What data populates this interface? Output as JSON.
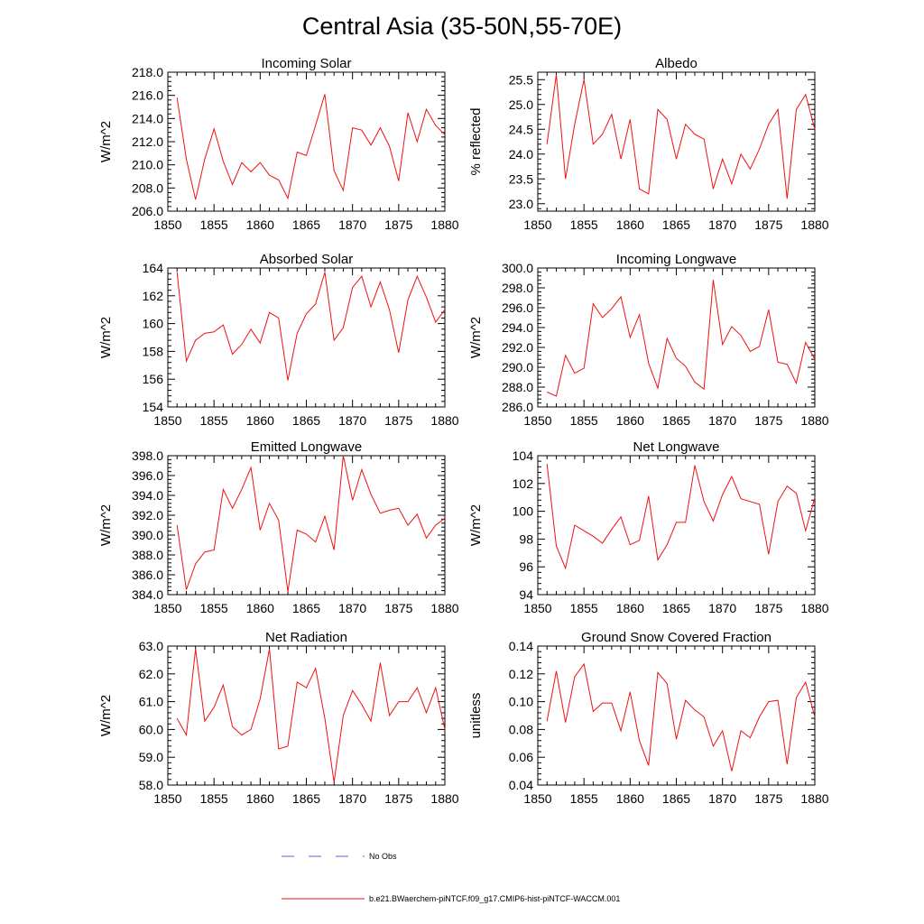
{
  "title": "Central Asia (35-50N,55-70E)",
  "legend": {
    "obs_label": "No Obs",
    "model_label": "b.e21.BWaerchem-piNTCF.f09_g17.CMIP6-hist-piNTCF-WACCM.001",
    "obs_color": "#5566cc",
    "model_color": "#ee1111"
  },
  "chart_data": [
    {
      "type": "line",
      "title": "Incoming Solar",
      "ylabel": "W/m^2",
      "xlim": [
        1850,
        1880
      ],
      "ylim": [
        206,
        218
      ],
      "yticks": [
        "206.0",
        "208.0",
        "210.0",
        "212.0",
        "214.0",
        "216.0",
        "218.0"
      ],
      "xticks": [
        "1850",
        "1855",
        "1860",
        "1865",
        "1870",
        "1875",
        "1880"
      ],
      "x": [
        1851,
        1852,
        1853,
        1854,
        1855,
        1856,
        1857,
        1858,
        1859,
        1860,
        1861,
        1862,
        1863,
        1864,
        1865,
        1866,
        1867,
        1868,
        1869,
        1870,
        1871,
        1872,
        1873,
        1874,
        1875,
        1876,
        1877,
        1878,
        1879,
        1880
      ],
      "series": [
        {
          "values": [
            215.8,
            210.5,
            207.0,
            210.5,
            213.1,
            210.3,
            208.3,
            210.2,
            209.4,
            210.2,
            209.1,
            208.7,
            207.1,
            211.1,
            210.8,
            213.4,
            216.1,
            209.5,
            207.8,
            213.2,
            213.0,
            211.7,
            213.2,
            211.6,
            208.6,
            214.5,
            212.0,
            214.8,
            213.4,
            212.6
          ]
        }
      ]
    },
    {
      "type": "line",
      "title": "Albedo",
      "ylabel": "% reflected",
      "xlim": [
        1850,
        1880
      ],
      "ylim": [
        22.85,
        25.65
      ],
      "yticks": [
        "23.0",
        "23.5",
        "24.0",
        "24.5",
        "25.0",
        "25.5"
      ],
      "xticks": [
        "1850",
        "1855",
        "1860",
        "1865",
        "1870",
        "1875",
        "1880"
      ],
      "x": [
        1851,
        1852,
        1853,
        1854,
        1855,
        1856,
        1857,
        1858,
        1859,
        1860,
        1861,
        1862,
        1863,
        1864,
        1865,
        1866,
        1867,
        1868,
        1869,
        1870,
        1871,
        1872,
        1873,
        1874,
        1875,
        1876,
        1877,
        1878,
        1879,
        1880
      ],
      "series": [
        {
          "values": [
            24.2,
            25.6,
            23.5,
            24.6,
            25.5,
            24.2,
            24.4,
            24.8,
            23.9,
            24.7,
            23.3,
            23.2,
            24.9,
            24.7,
            23.9,
            24.6,
            24.4,
            24.3,
            23.3,
            23.9,
            23.4,
            24.0,
            23.7,
            24.1,
            24.6,
            24.9,
            23.1,
            24.9,
            25.2,
            24.5
          ]
        }
      ]
    },
    {
      "type": "line",
      "title": "Absorbed Solar",
      "ylabel": "W/m^2",
      "xlim": [
        1850,
        1880
      ],
      "ylim": [
        154,
        164
      ],
      "yticks": [
        "154",
        "156",
        "158",
        "160",
        "162",
        "164"
      ],
      "xticks": [
        "1850",
        "1855",
        "1860",
        "1865",
        "1870",
        "1875",
        "1880"
      ],
      "x": [
        1851,
        1852,
        1853,
        1854,
        1855,
        1856,
        1857,
        1858,
        1859,
        1860,
        1861,
        1862,
        1863,
        1864,
        1865,
        1866,
        1867,
        1868,
        1869,
        1870,
        1871,
        1872,
        1873,
        1874,
        1875,
        1876,
        1877,
        1878,
        1879,
        1880
      ],
      "series": [
        {
          "values": [
            163.7,
            157.3,
            158.8,
            159.3,
            159.4,
            159.9,
            157.8,
            158.5,
            159.6,
            158.6,
            160.8,
            160.4,
            155.9,
            159.3,
            160.7,
            161.4,
            163.7,
            158.8,
            159.7,
            162.6,
            163.4,
            161.2,
            163.0,
            161.0,
            157.9,
            161.7,
            163.4,
            161.9,
            160.1,
            161.0
          ]
        }
      ]
    },
    {
      "type": "line",
      "title": "Incoming Longwave",
      "ylabel": "W/m^2",
      "xlim": [
        1850,
        1880
      ],
      "ylim": [
        286,
        300
      ],
      "yticks": [
        "286.0",
        "288.0",
        "290.0",
        "292.0",
        "294.0",
        "296.0",
        "298.0",
        "300.0"
      ],
      "xticks": [
        "1850",
        "1855",
        "1860",
        "1865",
        "1870",
        "1875",
        "1880"
      ],
      "x": [
        1851,
        1852,
        1853,
        1854,
        1855,
        1856,
        1857,
        1858,
        1859,
        1860,
        1861,
        1862,
        1863,
        1864,
        1865,
        1866,
        1867,
        1868,
        1869,
        1870,
        1871,
        1872,
        1873,
        1874,
        1875,
        1876,
        1877,
        1878,
        1879,
        1880
      ],
      "series": [
        {
          "values": [
            287.5,
            287.1,
            291.2,
            289.4,
            289.9,
            296.4,
            295.0,
            295.9,
            297.1,
            293.0,
            295.3,
            290.4,
            287.9,
            292.9,
            290.9,
            290.1,
            288.5,
            287.8,
            298.8,
            292.3,
            294.1,
            293.2,
            291.6,
            292.1,
            295.8,
            290.5,
            290.3,
            288.4,
            292.5,
            290.8
          ]
        }
      ]
    },
    {
      "type": "line",
      "title": "Emitted Longwave",
      "ylabel": "W/m^2",
      "xlim": [
        1850,
        1880
      ],
      "ylim": [
        384,
        398
      ],
      "yticks": [
        "384.0",
        "386.0",
        "388.0",
        "390.0",
        "392.0",
        "394.0",
        "396.0",
        "398.0"
      ],
      "xticks": [
        "1850",
        "1855",
        "1860",
        "1865",
        "1870",
        "1875",
        "1880"
      ],
      "x": [
        1851,
        1852,
        1853,
        1854,
        1855,
        1856,
        1857,
        1858,
        1859,
        1860,
        1861,
        1862,
        1863,
        1864,
        1865,
        1866,
        1867,
        1868,
        1869,
        1870,
        1871,
        1872,
        1873,
        1874,
        1875,
        1876,
        1877,
        1878,
        1879,
        1880
      ],
      "series": [
        {
          "values": [
            391.0,
            384.5,
            387.1,
            388.3,
            388.5,
            394.6,
            392.7,
            394.6,
            396.8,
            390.5,
            393.2,
            391.5,
            384.3,
            390.5,
            390.1,
            389.3,
            391.9,
            388.5,
            398.0,
            393.5,
            396.6,
            394.1,
            392.2,
            392.5,
            392.7,
            391.0,
            392.1,
            389.7,
            391.0,
            391.7
          ]
        }
      ]
    },
    {
      "type": "line",
      "title": "Net Longwave",
      "ylabel": "W/m^2",
      "xlim": [
        1850,
        1880
      ],
      "ylim": [
        94,
        104
      ],
      "yticks": [
        "94",
        "96",
        "98",
        "100",
        "102",
        "104"
      ],
      "xticks": [
        "1850",
        "1855",
        "1860",
        "1865",
        "1870",
        "1875",
        "1880"
      ],
      "x": [
        1851,
        1852,
        1853,
        1854,
        1855,
        1856,
        1857,
        1858,
        1859,
        1860,
        1861,
        1862,
        1863,
        1864,
        1865,
        1866,
        1867,
        1868,
        1869,
        1870,
        1871,
        1872,
        1873,
        1874,
        1875,
        1876,
        1877,
        1878,
        1879,
        1880
      ],
      "series": [
        {
          "values": [
            103.4,
            97.5,
            95.9,
            99.0,
            98.6,
            98.2,
            97.7,
            98.7,
            99.6,
            97.6,
            97.9,
            101.1,
            96.5,
            97.6,
            99.2,
            99.2,
            103.3,
            100.7,
            99.3,
            101.2,
            102.5,
            100.9,
            100.7,
            100.5,
            96.9,
            100.7,
            101.8,
            101.3,
            98.6,
            101.0
          ]
        }
      ]
    },
    {
      "type": "line",
      "title": "Net Radiation",
      "ylabel": "W/m^2",
      "xlim": [
        1850,
        1880
      ],
      "ylim": [
        58,
        63
      ],
      "yticks": [
        "58.0",
        "59.0",
        "60.0",
        "61.0",
        "62.0",
        "63.0"
      ],
      "xticks": [
        "1850",
        "1855",
        "1860",
        "1865",
        "1870",
        "1875",
        "1880"
      ],
      "x": [
        1851,
        1852,
        1853,
        1854,
        1855,
        1856,
        1857,
        1858,
        1859,
        1860,
        1861,
        1862,
        1863,
        1864,
        1865,
        1866,
        1867,
        1868,
        1869,
        1870,
        1871,
        1872,
        1873,
        1874,
        1875,
        1876,
        1877,
        1878,
        1879,
        1880
      ],
      "series": [
        {
          "values": [
            60.4,
            59.8,
            62.9,
            60.3,
            60.8,
            61.6,
            60.1,
            59.8,
            60.0,
            61.1,
            62.9,
            59.3,
            59.4,
            61.7,
            61.5,
            62.2,
            60.4,
            58.1,
            60.5,
            61.4,
            60.9,
            60.3,
            62.4,
            60.5,
            61.0,
            61.0,
            61.5,
            60.6,
            61.5,
            60.0
          ]
        }
      ]
    },
    {
      "type": "line",
      "title": "Ground Snow Covered Fraction",
      "ylabel": "unitless",
      "xlim": [
        1850,
        1880
      ],
      "ylim": [
        0.04,
        0.14
      ],
      "yticks": [
        "0.04",
        "0.06",
        "0.08",
        "0.10",
        "0.12",
        "0.14"
      ],
      "xticks": [
        "1850",
        "1855",
        "1860",
        "1865",
        "1870",
        "1875",
        "1880"
      ],
      "x": [
        1851,
        1852,
        1853,
        1854,
        1855,
        1856,
        1857,
        1858,
        1859,
        1860,
        1861,
        1862,
        1863,
        1864,
        1865,
        1866,
        1867,
        1868,
        1869,
        1870,
        1871,
        1872,
        1873,
        1874,
        1875,
        1876,
        1877,
        1878,
        1879,
        1880
      ],
      "series": [
        {
          "values": [
            0.086,
            0.122,
            0.085,
            0.118,
            0.127,
            0.093,
            0.099,
            0.099,
            0.079,
            0.107,
            0.072,
            0.054,
            0.121,
            0.113,
            0.073,
            0.101,
            0.094,
            0.089,
            0.068,
            0.079,
            0.05,
            0.079,
            0.074,
            0.089,
            0.1,
            0.101,
            0.055,
            0.103,
            0.114,
            0.089
          ]
        }
      ]
    }
  ]
}
